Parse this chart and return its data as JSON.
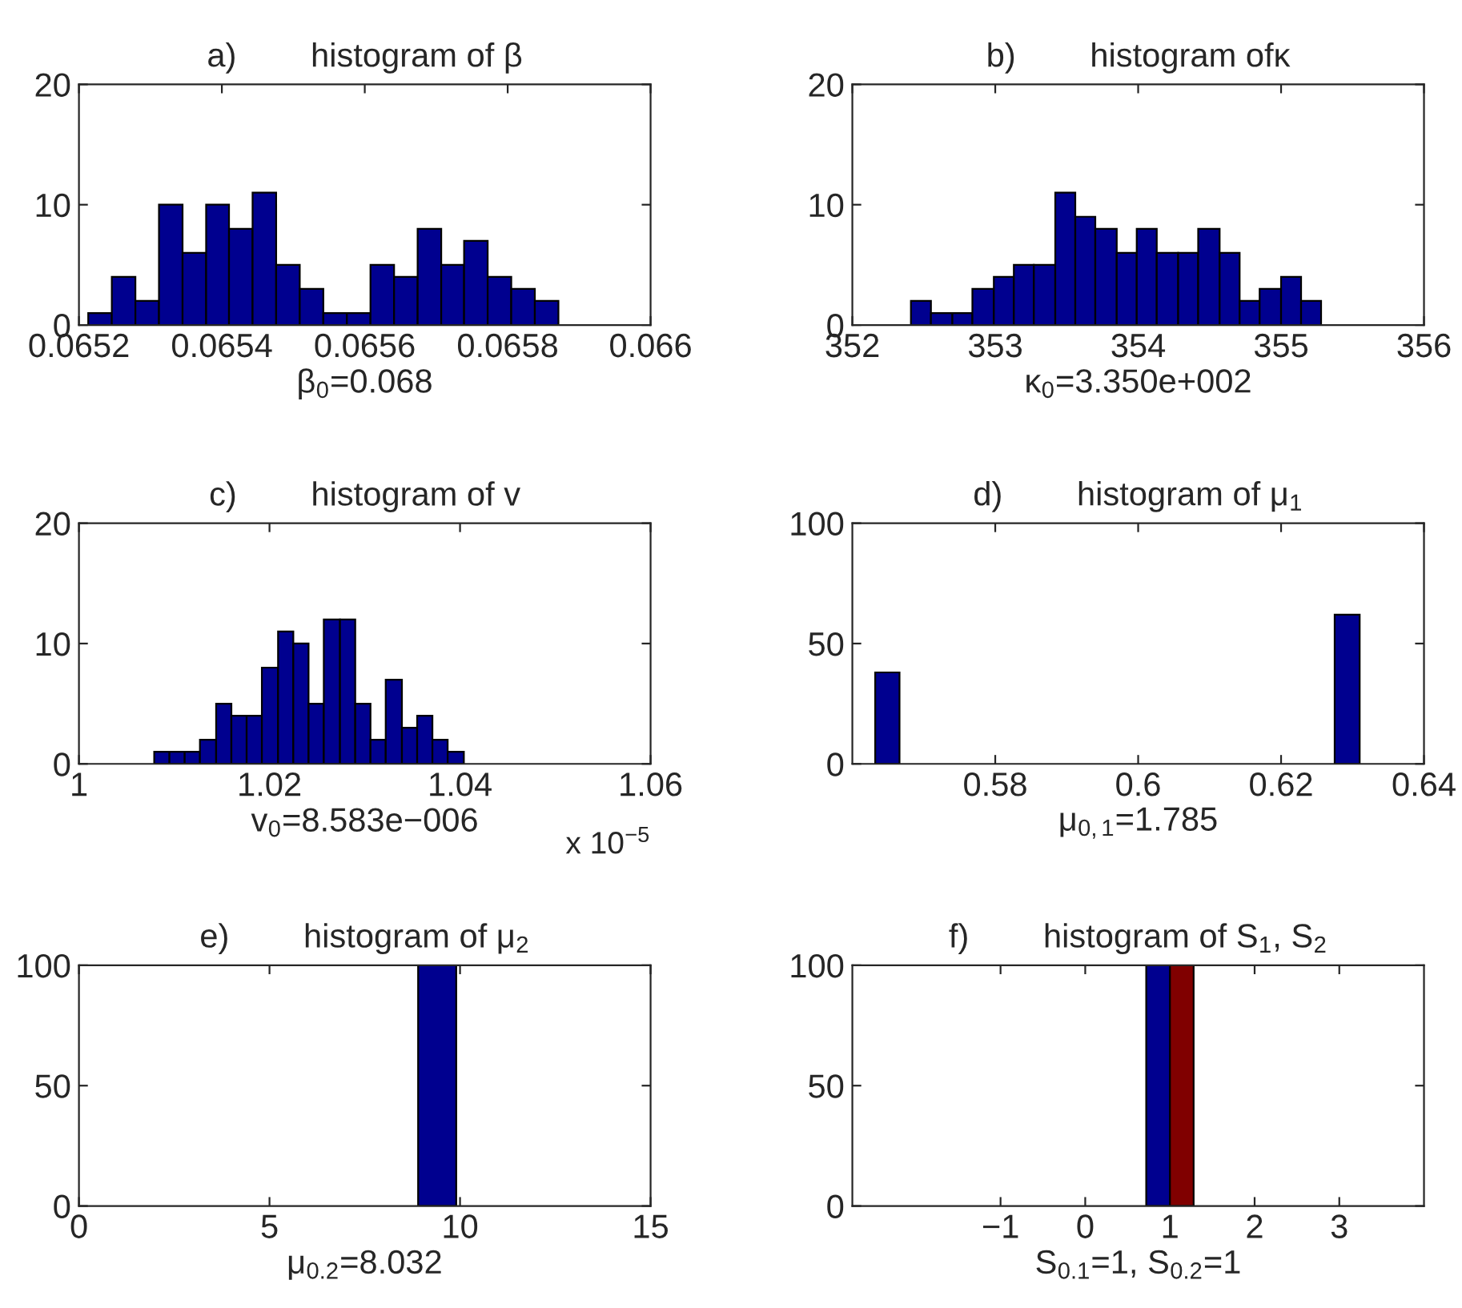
{
  "chart_data": [
    {
      "type": "histogram",
      "title": "a)        histogram of β",
      "xlabel": "β$_{0}$=0.068",
      "color": "#00008f",
      "bins": [
        0.065213,
        0.065246,
        0.065279,
        0.065312,
        0.065345,
        0.065378,
        0.06541,
        0.065443,
        0.065476,
        0.065509,
        0.065542,
        0.065575,
        0.065608,
        0.065641,
        0.065674,
        0.065707,
        0.065739,
        0.065772,
        0.065805,
        0.065838,
        0.065871
      ],
      "values": [
        1,
        4,
        2,
        10,
        6,
        10,
        8,
        11,
        5,
        3,
        1,
        1,
        5,
        4,
        8,
        5,
        7,
        4,
        3,
        2
      ],
      "xlim": [
        0.0652,
        0.066
      ],
      "xticks": [
        0.0652,
        0.0654,
        0.0656,
        0.0658,
        0.066
      ],
      "ylim": [
        0,
        20
      ],
      "yticks": [
        0,
        10,
        20
      ]
    },
    {
      "type": "histogram",
      "title": "b)        histogram ofκ",
      "xlabel": "κ$_{0}$=3.350e+002",
      "color": "#00008f",
      "bins": [
        352.41,
        352.55,
        352.7,
        352.84,
        352.99,
        353.13,
        353.27,
        353.42,
        353.56,
        353.7,
        353.85,
        353.99,
        354.13,
        354.28,
        354.42,
        354.57,
        354.71,
        354.85,
        355.0,
        355.14,
        355.28
      ],
      "values": [
        2,
        1,
        1,
        3,
        4,
        5,
        5,
        11,
        9,
        8,
        6,
        8,
        6,
        6,
        8,
        6,
        2,
        3,
        4,
        2
      ],
      "xlim": [
        352,
        356
      ],
      "xticks": [
        352,
        353,
        354,
        355,
        356
      ],
      "ylim": [
        0,
        20
      ],
      "yticks": [
        0,
        10,
        20
      ]
    },
    {
      "type": "histogram",
      "title": "c)        histogram of v",
      "xlabel": "v$_{0}$=8.583e−006",
      "color": "#00008f",
      "bins": [
        1.0079,
        1.0095,
        1.0111,
        1.0127,
        1.0144,
        1.016,
        1.0176,
        1.0192,
        1.0209,
        1.0225,
        1.0241,
        1.0257,
        1.0274,
        1.029,
        1.0306,
        1.0322,
        1.0339,
        1.0355,
        1.0371,
        1.0387,
        1.0404
      ],
      "values": [
        1,
        1,
        1,
        2,
        5,
        4,
        4,
        8,
        11,
        10,
        5,
        12,
        12,
        5,
        2,
        7,
        3,
        4,
        2,
        1
      ],
      "xlim": [
        1,
        1.06
      ],
      "xticks": [
        1,
        1.02,
        1.04,
        1.06
      ],
      "ylim": [
        0,
        20
      ],
      "yticks": [
        0,
        10,
        20
      ],
      "annotations": [
        "x 10$^{−5}$"
      ]
    },
    {
      "type": "histogram",
      "title": "d)        histogram of μ$_{1}$",
      "xlabel": "μ$_{0,1}$=1.785",
      "color": "#00008f",
      "bins": [
        0.5632,
        0.5666,
        0.6275,
        0.631
      ],
      "values": [
        38,
        null,
        62
      ],
      "xlim": [
        0.56,
        0.64
      ],
      "xticks": [
        0.58,
        0.6,
        0.62,
        0.64
      ],
      "ylim": [
        0,
        100
      ],
      "yticks": [
        0,
        50,
        100
      ]
    },
    {
      "type": "histogram",
      "title": "e)        histogram of μ$_{2}$",
      "xlabel": "μ$_{0.2}$=8.032",
      "color": "#00008f",
      "bins": [
        8.9,
        9.9
      ],
      "values": [
        100
      ],
      "xlim": [
        0,
        15
      ],
      "xticks": [
        0,
        5,
        10,
        15
      ],
      "ylim": [
        0,
        100
      ],
      "yticks": [
        0,
        50,
        100
      ]
    },
    {
      "type": "histogram",
      "title": "f)        histogram of S$_{1}$, S$_{2}$",
      "xlabel": "S$_{0.1}$=1, S$_{0.2}$=1",
      "bins": [
        0.72,
        1.0,
        1.28
      ],
      "series": [
        {
          "color": "#00008f",
          "values": [
            100,
            null
          ]
        },
        {
          "color": "#800000",
          "values": [
            null,
            100
          ]
        }
      ],
      "xlim": [
        -2.75,
        4
      ],
      "xticks": [
        {
          "value": -1,
          "label": "−1"
        },
        0,
        1,
        2,
        3
      ],
      "ylim": [
        0,
        100
      ],
      "yticks": [
        0,
        50,
        100
      ]
    }
  ]
}
